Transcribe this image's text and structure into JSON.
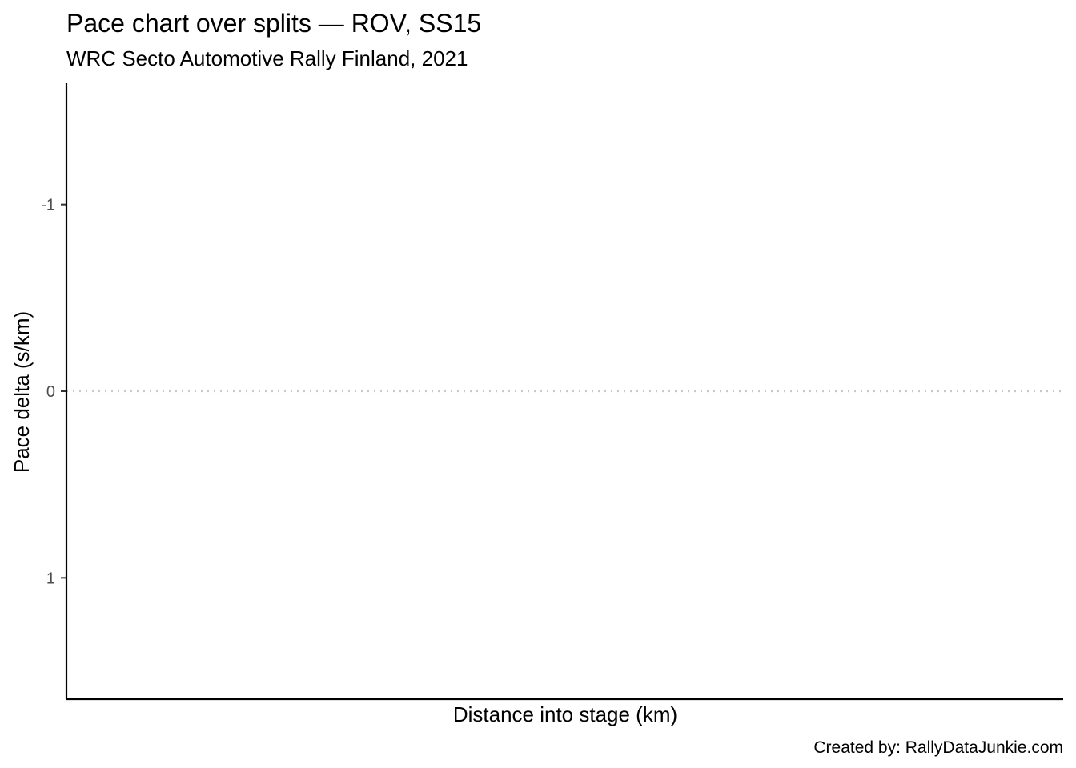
{
  "chart_data": {
    "type": "line",
    "title": "Pace chart over splits — ROV, SS15",
    "subtitle": "WRC Secto Automotive Rally Finland, 2021",
    "xlabel": "Distance into stage (km)",
    "ylabel": "Pace delta (s/km)",
    "caption": "Created by: RallyDataJunkie.com",
    "y_reversed": true,
    "ylim": [
      -1.65,
      1.65
    ],
    "y_ticks": [
      -1,
      0,
      1
    ],
    "y_tick_labels": [
      "-1",
      "0",
      "1"
    ],
    "x_ticks": [],
    "reference_line": {
      "y": 0,
      "style": "dotted",
      "color": "#c8c8c8"
    },
    "grid": false,
    "legend": "none",
    "series": []
  }
}
